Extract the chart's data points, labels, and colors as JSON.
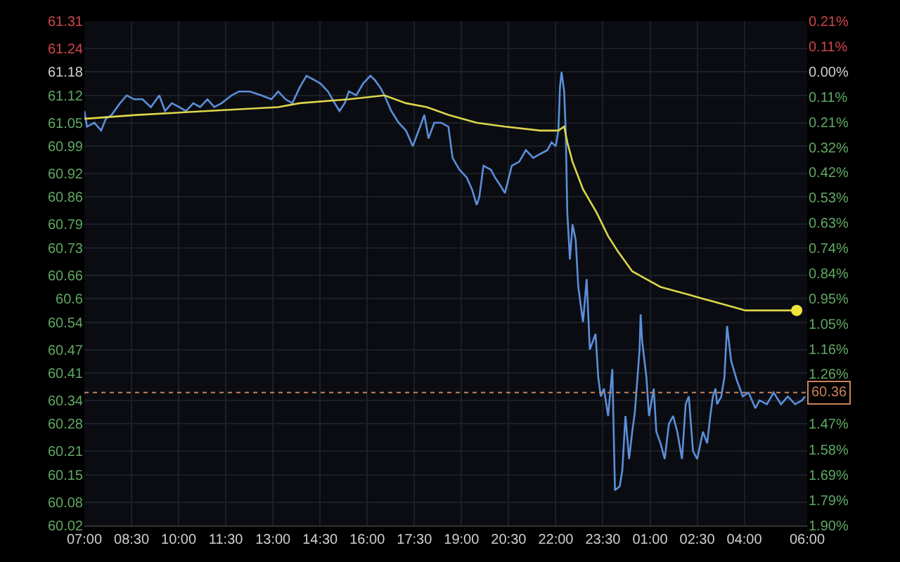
{
  "chart_data": {
    "type": "line",
    "x": [
      "--01-01T07:00",
      "--01-01T07:05",
      "--01-01T07:19",
      "--01-01T07:32",
      "--01-01T07:41",
      "--01-01T07:52",
      "--01-01T08:08",
      "--01-01T08:21",
      "--01-01T08:35",
      "--01-01T08:51",
      "--01-01T09:07",
      "--01-01T09:23",
      "--01-01T09:34",
      "--01-01T09:47",
      "--01-01T10:01",
      "--01-01T10:14",
      "--01-01T10:28",
      "--01-01T10:41",
      "--01-01T10:55",
      "--01-01T11:08",
      "--01-01T11:22",
      "--01-01T11:41",
      "--01-01T11:55",
      "--01-01T12:16",
      "--01-01T12:38",
      "--01-01T12:57",
      "--01-01T13:10",
      "--01-01T13:24",
      "--01-01T13:37",
      "--01-01T13:51",
      "--01-01T14:04",
      "--01-01T14:18",
      "--01-01T14:31",
      "--01-01T14:45",
      "--01-01T14:58",
      "--01-01T15:07",
      "--01-01T15:17",
      "--01-01T15:25",
      "--01-01T15:39",
      "--01-01T15:52",
      "--01-01T16:06",
      "--01-01T16:14",
      "--01-01T16:25",
      "--01-01T16:33",
      "--01-01T16:46",
      "--01-01T17:00",
      "--01-01T17:14",
      "--01-01T17:27",
      "--01-01T17:41",
      "--01-01T17:49",
      "--01-01T17:57",
      "--01-01T18:08",
      "--01-01T18:21",
      "--01-01T18:35",
      "--01-01T18:43",
      "--01-01T18:56",
      "--01-01T19:10",
      "--01-01T19:20",
      "--01-01T19:29",
      "--01-01T19:34",
      "--01-01T19:42",
      "--01-01T19:56",
      "--01-01T20:04",
      "--01-01T20:14",
      "--01-01T20:23",
      "--01-01T20:36",
      "--01-01T20:50",
      "--01-01T21:03",
      "--01-01T21:17",
      "--01-01T21:30",
      "--01-01T21:44",
      "--01-01T21:52",
      "--01-01T22:00",
      "--01-01T22:05",
      "--01-01T22:08",
      "--01-01T22:11",
      "--01-01T22:16",
      "--01-01T22:19",
      "--01-01T22:22",
      "--01-01T22:27",
      "--01-01T22:32",
      "--01-01T22:38",
      "--01-01T22:43",
      "--01-01T22:52",
      "--01-01T22:59",
      "--01-01T23:05",
      "--01-01T23:16",
      "--01-01T23:21",
      "--01-01T23:26",
      "--01-01T23:32",
      "--01-01T23:40",
      "--01-01T23:48",
      "--01-01T23:53",
      "--01-02T00:02",
      "--01-02T00:07",
      "--01-02T00:13",
      "--01-02T00:20",
      "--01-02T00:26",
      "--01-02T00:31",
      "--01-02T00:40",
      "--01-02T00:42",
      "--01-02T00:45",
      "--01-02T00:53",
      "--01-02T00:58",
      "--01-02T01:07",
      "--01-02T01:12",
      "--01-02T01:20",
      "--01-02T01:28",
      "--01-02T01:36",
      "--01-02T01:44",
      "--01-02T01:52",
      "--01-02T02:01",
      "--01-02T02:08",
      "--01-02T02:14",
      "--01-02T02:22",
      "--01-02T02:30",
      "--01-02T02:41",
      "--01-02T02:49",
      "--01-02T02:55",
      "--01-02T03:00",
      "--01-02T03:05",
      "--01-02T03:08",
      "--01-02T03:16",
      "--01-02T03:22",
      "--01-02T03:27",
      "--01-02T03:35",
      "--01-02T03:46",
      "--01-02T03:57",
      "--01-02T04:08",
      "--01-02T04:21",
      "--01-02T04:29",
      "--01-02T04:43",
      "--01-02T04:56",
      "--01-02T05:10",
      "--01-02T05:23",
      "--01-02T05:37",
      "--01-02T05:50",
      "--01-02T05:56"
    ],
    "series": [
      {
        "color": "#5b8fd9",
        "values": [
          61.08,
          61.04,
          61.05,
          61.03,
          61.06,
          61.07,
          61.1,
          61.12,
          61.11,
          61.11,
          61.09,
          61.12,
          61.08,
          61.1,
          61.09,
          61.08,
          61.1,
          61.09,
          61.11,
          61.09,
          61.1,
          61.12,
          61.13,
          61.13,
          61.12,
          61.11,
          61.13,
          61.11,
          61.1,
          61.14,
          61.17,
          61.16,
          61.15,
          61.13,
          61.1,
          61.08,
          61.1,
          61.13,
          61.12,
          61.15,
          61.17,
          61.16,
          61.14,
          61.12,
          61.08,
          61.05,
          61.03,
          60.99,
          61.04,
          61.07,
          61.01,
          61.05,
          61.05,
          61.04,
          60.96,
          60.93,
          60.91,
          60.88,
          60.84,
          60.86,
          60.94,
          60.93,
          60.91,
          60.89,
          60.87,
          60.94,
          60.95,
          60.98,
          60.96,
          60.97,
          60.98,
          61.0,
          60.99,
          61.03,
          61.14,
          61.18,
          61.13,
          61.03,
          60.82,
          60.7,
          60.79,
          60.75,
          60.63,
          60.54,
          60.65,
          60.47,
          60.51,
          60.4,
          60.35,
          60.37,
          60.3,
          60.42,
          60.11,
          60.12,
          60.16,
          60.3,
          60.19,
          60.26,
          60.31,
          60.47,
          60.56,
          60.49,
          60.4,
          60.3,
          60.37,
          60.26,
          60.23,
          60.19,
          60.28,
          60.3,
          60.26,
          60.19,
          60.33,
          60.35,
          60.21,
          60.19,
          60.26,
          60.23,
          60.3,
          60.35,
          60.37,
          60.33,
          60.35,
          60.4,
          60.53,
          60.44,
          60.39,
          60.35,
          60.36,
          60.32,
          60.34,
          60.33,
          60.36,
          60.33,
          60.35,
          60.33,
          60.34,
          60.35
        ]
      },
      {
        "color": "#ddd64a",
        "x": [
          "--01-01T07:00",
          "--01-01T08:40",
          "--01-01T10:55",
          "--01-01T13:10",
          "--01-01T13:51",
          "--01-01T15:25",
          "--01-01T16:33",
          "--01-01T17:14",
          "--01-01T17:54",
          "--01-01T18:35",
          "--01-01T19:29",
          "--01-01T20:23",
          "--01-01T21:30",
          "--01-01T22:05",
          "--01-01T22:16",
          "--01-01T22:22",
          "--01-01T22:32",
          "--01-01T22:52",
          "--01-01T23:18",
          "--01-01T23:40",
          "--01-01T23:59",
          "--01-02T00:26",
          "--01-02T00:53",
          "--01-02T01:20",
          "--01-02T01:47",
          "--01-02T02:14",
          "--01-02T02:41",
          "--01-02T03:08",
          "--01-02T03:35",
          "--01-02T04:02",
          "--01-02T04:43",
          "--01-02T05:40"
        ],
        "values": [
          61.06,
          61.07,
          61.08,
          61.09,
          61.1,
          61.11,
          61.12,
          61.1,
          61.09,
          61.07,
          61.05,
          61.04,
          61.03,
          61.03,
          61.04,
          61.0,
          60.95,
          60.88,
          60.82,
          60.76,
          60.72,
          60.67,
          60.65,
          60.63,
          60.62,
          60.61,
          60.6,
          60.59,
          60.58,
          60.57,
          60.57,
          60.57
        ]
      },
      {
        "type": "scatter",
        "marker": "circle",
        "color": "#f2e43a",
        "x": [
          "--01-02T05:40"
        ],
        "values": [
          60.57
        ]
      }
    ],
    "xlim": [
      "--01-01T07:00",
      "--01-02T06:00"
    ],
    "xticks": [
      {
        "value": "--01-01T07:00",
        "label": "07:00"
      },
      {
        "value": "--01-01T08:30",
        "label": "08:30"
      },
      {
        "value": "--01-01T10:00",
        "label": "10:00"
      },
      {
        "value": "--01-01T11:30",
        "label": "11:30"
      },
      {
        "value": "--01-01T13:00",
        "label": "13:00"
      },
      {
        "value": "--01-01T14:30",
        "label": "14:30"
      },
      {
        "value": "--01-01T16:00",
        "label": "16:00"
      },
      {
        "value": "--01-01T17:30",
        "label": "17:30"
      },
      {
        "value": "--01-01T19:00",
        "label": "19:00"
      },
      {
        "value": "--01-01T20:30",
        "label": "20:30"
      },
      {
        "value": "--01-01T22:00",
        "label": "22:00"
      },
      {
        "value": "--01-01T23:30",
        "label": "23:30"
      },
      {
        "value": "--01-02T01:00",
        "label": "01:00"
      },
      {
        "value": "--01-02T02:30",
        "label": "02:30"
      },
      {
        "value": "--01-02T04:00",
        "label": "04:00"
      },
      {
        "value": "--01-02T06:00",
        "label": "06:00"
      }
    ],
    "ylim": [
      60.02,
      61.31
    ],
    "yticks": [
      61.31,
      61.24,
      61.18,
      61.12,
      61.05,
      60.99,
      60.92,
      60.86,
      60.79,
      60.73,
      60.66,
      60.6,
      60.54,
      60.47,
      60.41,
      60.34,
      60.28,
      60.21,
      60.15,
      60.08,
      60.02
    ],
    "y2lim": [
      -1.899,
      0.211
    ],
    "y2ticks": [
      {
        "value": 0.211,
        "label": "0.21%"
      },
      {
        "value": 0.1055,
        "label": "0.11%"
      },
      {
        "value": 0,
        "label": "0.00%"
      },
      {
        "value": -0.1055,
        "label": "0.11%"
      },
      {
        "value": -0.211,
        "label": "0.21%"
      },
      {
        "value": -0.3165,
        "label": "0.32%"
      },
      {
        "value": -0.422,
        "label": "0.42%"
      },
      {
        "value": -0.5275,
        "label": "0.53%"
      },
      {
        "value": -0.633,
        "label": "0.63%"
      },
      {
        "value": -0.7385,
        "label": "0.74%"
      },
      {
        "value": -0.844,
        "label": "0.84%"
      },
      {
        "value": -0.9495,
        "label": "0.95%"
      },
      {
        "value": -1.055,
        "label": "1.05%"
      },
      {
        "value": -1.1605,
        "label": "1.16%"
      },
      {
        "value": -1.264,
        "label": "1.26%"
      },
      {
        "value": -1.474,
        "label": "1.47%"
      },
      {
        "value": -1.5825,
        "label": "1.58%"
      },
      {
        "value": -1.688,
        "label": "1.69%"
      },
      {
        "value": -1.7935,
        "label": "1.79%"
      },
      {
        "value": -1.899,
        "label": "1.90%"
      }
    ],
    "ref_lines": [
      {
        "axis": "y",
        "value": 60.36,
        "label": "60.36",
        "color": "#c8825a",
        "line_style": "dotted"
      }
    ],
    "grid": true,
    "marker": "none",
    "line_style": "solid"
  }
}
